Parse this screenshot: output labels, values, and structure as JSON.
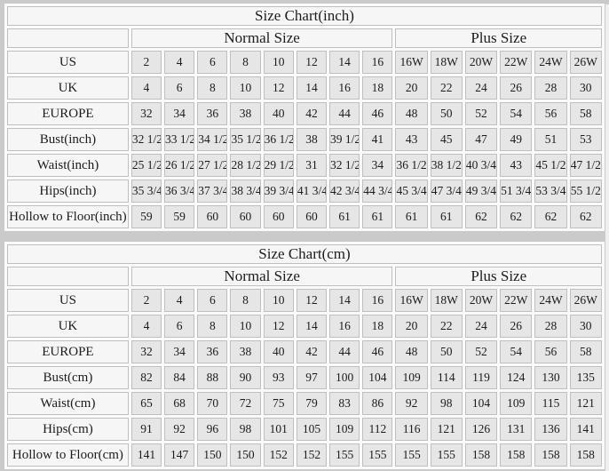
{
  "page": {
    "background_color": "#cacaca",
    "cell_color": "#e6e6e6",
    "header_cell_color": "#f6f6f6",
    "border_color": "#bfbfbf",
    "text_color": "#1c1c1c"
  },
  "tables": [
    {
      "title": "Size Chart(inch)",
      "normal_header": "Normal Size",
      "plus_header": "Plus Size",
      "rows": [
        {
          "label": "US",
          "normal": [
            "2",
            "4",
            "6",
            "8",
            "10",
            "12",
            "14",
            "16"
          ],
          "plus": [
            "16W",
            "18W",
            "20W",
            "22W",
            "24W",
            "26W"
          ]
        },
        {
          "label": "UK",
          "normal": [
            "4",
            "6",
            "8",
            "10",
            "12",
            "14",
            "16",
            "18"
          ],
          "plus": [
            "20",
            "22",
            "24",
            "26",
            "28",
            "30"
          ]
        },
        {
          "label": "EUROPE",
          "normal": [
            "32",
            "34",
            "36",
            "38",
            "40",
            "42",
            "44",
            "46"
          ],
          "plus": [
            "48",
            "50",
            "52",
            "54",
            "56",
            "58"
          ]
        },
        {
          "label": "Bust(inch)",
          "normal": [
            "32 1/2",
            "33 1/2",
            "34 1/2",
            "35 1/2",
            "36 1/2",
            "38",
            "39 1/2",
            "41"
          ],
          "plus": [
            "43",
            "45",
            "47",
            "49",
            "51",
            "53"
          ]
        },
        {
          "label": "Waist(inch)",
          "normal": [
            "25 1/2",
            "26 1/2",
            "27 1/2",
            "28 1/2",
            "29 1/2",
            "31",
            "32 1/2",
            "34"
          ],
          "plus": [
            "36 1/2",
            "38 1/2",
            "40 3/4",
            "43",
            "45 1/2",
            "47 1/2"
          ]
        },
        {
          "label": "Hips(inch)",
          "normal": [
            "35 3/4",
            "36 3/4",
            "37 3/4",
            "38 3/4",
            "39 3/4",
            "41 3/4",
            "42 3/4",
            "44 3/4"
          ],
          "plus": [
            "45 3/4",
            "47 3/4",
            "49 3/4",
            "51 3/4",
            "53 3/4",
            "55 1/2"
          ]
        },
        {
          "label": "Hollow to Floor(inch)",
          "normal": [
            "59",
            "59",
            "60",
            "60",
            "60",
            "60",
            "61",
            "61"
          ],
          "plus": [
            "61",
            "61",
            "62",
            "62",
            "62",
            "62"
          ]
        }
      ]
    },
    {
      "title": "Size Chart(cm)",
      "normal_header": "Normal Size",
      "plus_header": "Plus Size",
      "rows": [
        {
          "label": "US",
          "normal": [
            "2",
            "4",
            "6",
            "8",
            "10",
            "12",
            "14",
            "16"
          ],
          "plus": [
            "16W",
            "18W",
            "20W",
            "22W",
            "24W",
            "26W"
          ]
        },
        {
          "label": "UK",
          "normal": [
            "4",
            "6",
            "8",
            "10",
            "12",
            "14",
            "16",
            "18"
          ],
          "plus": [
            "20",
            "22",
            "24",
            "26",
            "28",
            "30"
          ]
        },
        {
          "label": "EUROPE",
          "normal": [
            "32",
            "34",
            "36",
            "38",
            "40",
            "42",
            "44",
            "46"
          ],
          "plus": [
            "48",
            "50",
            "52",
            "54",
            "56",
            "58"
          ]
        },
        {
          "label": "Bust(cm)",
          "normal": [
            "82",
            "84",
            "88",
            "90",
            "93",
            "97",
            "100",
            "104"
          ],
          "plus": [
            "109",
            "114",
            "119",
            "124",
            "130",
            "135"
          ]
        },
        {
          "label": "Waist(cm)",
          "normal": [
            "65",
            "68",
            "70",
            "72",
            "75",
            "79",
            "83",
            "86"
          ],
          "plus": [
            "92",
            "98",
            "104",
            "109",
            "115",
            "121"
          ]
        },
        {
          "label": "Hips(cm)",
          "normal": [
            "91",
            "92",
            "96",
            "98",
            "101",
            "105",
            "109",
            "112"
          ],
          "plus": [
            "116",
            "121",
            "126",
            "131",
            "136",
            "141"
          ]
        },
        {
          "label": "Hollow to Floor(cm)",
          "normal": [
            "141",
            "147",
            "150",
            "150",
            "152",
            "152",
            "155",
            "155"
          ],
          "plus": [
            "155",
            "155",
            "158",
            "158",
            "158",
            "158"
          ]
        }
      ]
    }
  ]
}
